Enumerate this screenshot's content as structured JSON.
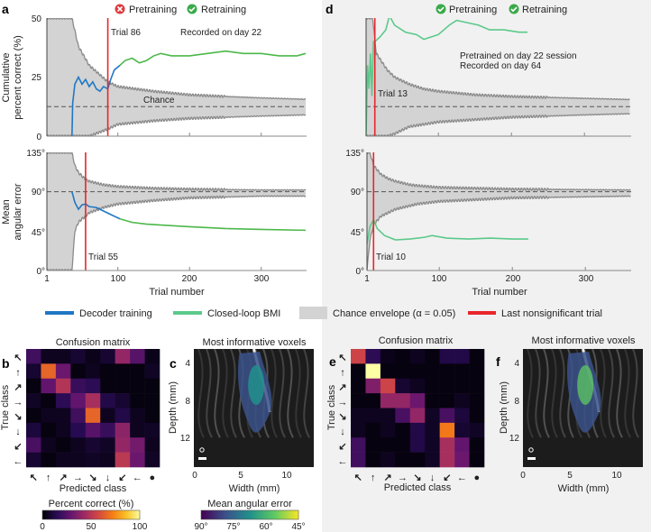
{
  "panel_letters": {
    "a": "a",
    "b": "b",
    "c": "c",
    "d": "d",
    "e": "e",
    "f": "f"
  },
  "colors": {
    "decoder_training": "#1f77c4",
    "closed_loop": "#5cc98a",
    "closed_loop_a": "#4cb84a",
    "chance_fill": "#d3d3d3",
    "chance_edge": "#8a8a8a",
    "last_nonsig": "#e8262b",
    "pretraining_fail": "#e03a3e",
    "check_ok": "#3aaa4a",
    "right_bg": "#f1f1f1"
  },
  "header_a": {
    "pretraining": "Pretraining",
    "pretraining_icon": "x-circle-icon",
    "retraining": "Retraining",
    "retraining_icon": "check-circle-icon"
  },
  "header_d": {
    "pretraining": "Pretraining",
    "pretraining_icon": "check-circle-icon",
    "retraining": "Retraining",
    "retraining_icon": "check-circle-icon"
  },
  "legend": {
    "decoder_training": "Decoder training",
    "closed_loop": "Closed-loop BMI",
    "chance_envelope": "Chance envelope (α = 0.05)",
    "last_nonsig": "Last nonsignificant trial"
  },
  "chart_data": [
    {
      "id": "a-top",
      "type": "line",
      "ylabel": [
        "Cumulative",
        "percent correct (%)"
      ],
      "ylim": [
        0,
        50
      ],
      "yticks": [
        "0",
        "25",
        "50"
      ],
      "xlim": [
        1,
        362
      ],
      "xticks": [
        "1",
        "100",
        "200",
        "300"
      ],
      "chance_label": "Chance",
      "chance": 12.5,
      "annotations": {
        "trial": "Trial 86",
        "note1": "Recorded on day 22"
      },
      "last_nonsig_trial": 86,
      "envelope": {
        "x": [
          1,
          36,
          45,
          60,
          86,
          100,
          150,
          200,
          250,
          300,
          362
        ],
        "upper": [
          50,
          50,
          38,
          30,
          23,
          21,
          19,
          17.5,
          16.8,
          16.2,
          15.6
        ],
        "lower": [
          0,
          0,
          0,
          0,
          3,
          5,
          6.5,
          7.5,
          8,
          8.5,
          9
        ]
      },
      "series": [
        {
          "name": "Decoder training",
          "x": [
            36,
            37,
            40,
            45,
            50,
            55,
            60,
            65,
            70,
            75,
            80,
            86,
            90,
            95,
            103
          ],
          "y": [
            0,
            14,
            22,
            25,
            22,
            24,
            21,
            23,
            20,
            19,
            21,
            20,
            24,
            28,
            30
          ]
        },
        {
          "name": "Closed-loop BMI",
          "x": [
            103,
            110,
            120,
            130,
            140,
            150,
            160,
            175,
            200,
            225,
            250,
            275,
            300,
            325,
            350,
            362
          ],
          "y": [
            30,
            32,
            33,
            31,
            32,
            34,
            35,
            34,
            34,
            35,
            36,
            35,
            35,
            34,
            34,
            35
          ]
        }
      ]
    },
    {
      "id": "a-bottom",
      "type": "line",
      "ylabel": [
        "Mean",
        "angular error"
      ],
      "ylim": [
        0,
        135
      ],
      "yticks": [
        "0°",
        "45°",
        "90°",
        "135°"
      ],
      "xlim": [
        1,
        362
      ],
      "xticks": [
        "1",
        "100",
        "200",
        "300"
      ],
      "xlabel": "Trial number",
      "chance": 90,
      "annotations": {
        "trial": "Trial 55"
      },
      "last_nonsig_trial": 55,
      "envelope": {
        "x": [
          1,
          36,
          40,
          45,
          50,
          55,
          60,
          80,
          100,
          150,
          200,
          300,
          362
        ],
        "upper": [
          135,
          135,
          120,
          112,
          108,
          104,
          102,
          98,
          96,
          94,
          93,
          92,
          92
        ],
        "lower": [
          0,
          0,
          45,
          55,
          59,
          62,
          66,
          72,
          76,
          80,
          83,
          85,
          85
        ]
      },
      "series": [
        {
          "name": "Decoder training",
          "x": [
            36,
            40,
            45,
            50,
            55,
            60,
            70,
            80,
            90,
            103
          ],
          "y": [
            90,
            78,
            70,
            75,
            76,
            73,
            72,
            68,
            64,
            59
          ]
        },
        {
          "name": "Closed-loop BMI",
          "x": [
            103,
            120,
            140,
            160,
            200,
            250,
            300,
            362
          ],
          "y": [
            59,
            55,
            53,
            52,
            50,
            48,
            47,
            46
          ]
        }
      ]
    },
    {
      "id": "d-top",
      "type": "line",
      "ylim": [
        0,
        50
      ],
      "xlim": [
        1,
        362
      ],
      "chance": 12.5,
      "annotations": {
        "trial": "Trial 13",
        "note1": "Pretrained on day 22 session",
        "note2": "Recorded on day 64"
      },
      "last_nonsig_trial": 13,
      "envelope": {
        "x": [
          1,
          10,
          15,
          30,
          40,
          60,
          80,
          100,
          150,
          200,
          300,
          362
        ],
        "upper": [
          50,
          50,
          35,
          28,
          25,
          22,
          20,
          19,
          17.5,
          16.8,
          16,
          15.5
        ],
        "lower": [
          0,
          0,
          0,
          0,
          1,
          4,
          5,
          6,
          7,
          8,
          9,
          9.5
        ]
      },
      "series": [
        {
          "name": "Closed-loop BMI",
          "x": [
            1,
            3,
            5,
            7,
            9,
            11,
            13,
            20,
            28,
            33,
            40,
            55,
            70,
            80,
            90,
            100,
            115,
            125,
            140,
            155,
            170,
            190,
            210,
            222
          ],
          "y": [
            0,
            30,
            20,
            35,
            17,
            40,
            40,
            42,
            45,
            51,
            47,
            44,
            43,
            41,
            42,
            43,
            47,
            49,
            48,
            47,
            45,
            45,
            44,
            44
          ]
        }
      ]
    },
    {
      "id": "d-bottom",
      "type": "line",
      "ylim": [
        0,
        135
      ],
      "yticks": [
        "0°",
        "45°",
        "90°",
        "135°"
      ],
      "xlim": [
        1,
        362
      ],
      "xticks": [
        "1",
        "100",
        "200",
        "300"
      ],
      "xlabel": "Trial number",
      "chance": 90,
      "annotations": {
        "trial": "Trial 10"
      },
      "last_nonsig_trial": 10,
      "envelope": {
        "x": [
          1,
          5,
          10,
          20,
          30,
          40,
          60,
          70,
          100,
          200,
          362
        ],
        "upper": [
          135,
          135,
          120,
          110,
          105,
          102,
          98,
          97,
          95,
          93,
          92
        ],
        "lower": [
          0,
          35,
          52,
          62,
          66,
          70,
          74,
          76,
          79,
          83,
          85
        ]
      },
      "series": [
        {
          "name": "Closed-loop BMI",
          "x": [
            1,
            5,
            10,
            15,
            25,
            40,
            60,
            80,
            90,
            110,
            140,
            170,
            200,
            222
          ],
          "y": [
            30,
            50,
            58,
            48,
            40,
            35,
            36,
            38,
            40,
            37,
            36,
            37,
            36,
            36
          ]
        }
      ]
    },
    {
      "id": "b",
      "type": "heatmap",
      "title": "Confusion matrix",
      "xlabel": "Predicted class",
      "ylabel": "True class",
      "row_labels": [
        "↖",
        "↑",
        "↗",
        "→",
        "↘",
        "↓",
        "↙",
        "←"
      ],
      "col_labels": [
        "↖",
        "↑",
        "↗",
        "→",
        "↘",
        "↓",
        "↙",
        "←",
        "●"
      ],
      "colorbar": {
        "label": "Percent correct (%)",
        "ticks": [
          "0",
          "50",
          "100"
        ],
        "range": [
          0,
          100
        ],
        "colormap": "inferno"
      },
      "values": [
        [
          20,
          5,
          5,
          8,
          4,
          8,
          40,
          25,
          4
        ],
        [
          8,
          65,
          30,
          2,
          5,
          2,
          2,
          2,
          6
        ],
        [
          2,
          28,
          48,
          18,
          15,
          2,
          2,
          2,
          2
        ],
        [
          6,
          2,
          15,
          28,
          45,
          12,
          8,
          2,
          2
        ],
        [
          2,
          5,
          5,
          20,
          65,
          5,
          12,
          5,
          2
        ],
        [
          10,
          2,
          5,
          14,
          25,
          18,
          38,
          5,
          6
        ],
        [
          22,
          5,
          2,
          5,
          8,
          6,
          40,
          32,
          5
        ],
        [
          8,
          2,
          5,
          5,
          6,
          5,
          50,
          30,
          6
        ]
      ]
    },
    {
      "id": "e",
      "type": "heatmap",
      "title": "Confusion matrix",
      "xlabel": "Predicted class",
      "ylabel": "True class",
      "row_labels": [
        "↖",
        "↑",
        "↗",
        "→",
        "↘",
        "↓",
        "↙",
        "←"
      ],
      "col_labels": [
        "↖",
        "↑",
        "↗",
        "→",
        "↘",
        "↓",
        "↙",
        "←",
        "●"
      ],
      "values": [
        [
          55,
          15,
          4,
          2,
          5,
          2,
          12,
          12,
          2
        ],
        [
          2,
          100,
          2,
          2,
          2,
          2,
          2,
          2,
          2
        ],
        [
          2,
          35,
          55,
          8,
          5,
          2,
          2,
          2,
          2
        ],
        [
          2,
          2,
          40,
          40,
          30,
          2,
          2,
          5,
          2
        ],
        [
          5,
          5,
          5,
          22,
          40,
          6,
          22,
          10,
          2
        ],
        [
          5,
          2,
          5,
          2,
          12,
          6,
          70,
          8,
          6
        ],
        [
          20,
          2,
          2,
          2,
          12,
          6,
          45,
          28,
          2
        ],
        [
          20,
          2,
          5,
          2,
          2,
          6,
          45,
          30,
          2
        ]
      ]
    }
  ],
  "panel_c": {
    "title": "Most informative voxels",
    "ylabel": "Depth (mm)",
    "yticks": [
      "4",
      "8",
      "12"
    ],
    "xlabel": "Width (mm)",
    "xticks": [
      "0",
      "5",
      "10"
    ],
    "colorbar": {
      "label": "Mean angular error",
      "ticks": [
        "90°",
        "75°",
        "60°",
        "45°"
      ],
      "colormap": "viridis"
    }
  },
  "panel_f": {
    "title": "Most informative voxels",
    "ylabel": "Depth (mm)",
    "yticks": [
      "4",
      "8",
      "12"
    ],
    "xlabel": "Width (mm)",
    "xticks": [
      "0",
      "5",
      "10"
    ]
  }
}
